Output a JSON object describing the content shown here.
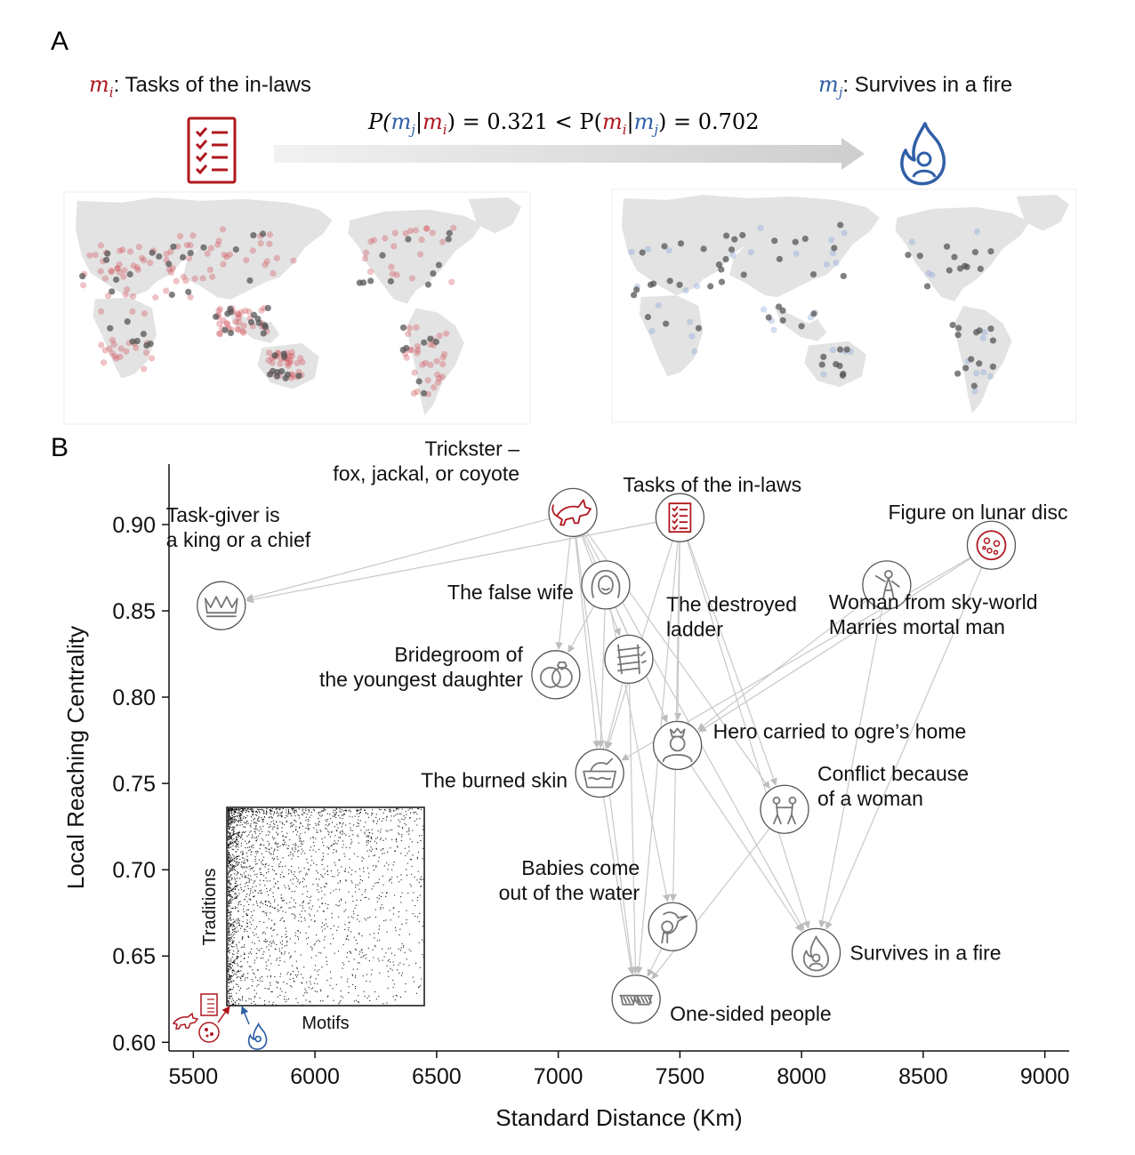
{
  "panel_a": {
    "letter": "A",
    "left_title_math": "m",
    "left_title_sub": "i",
    "left_title_text": ": Tasks of the in-laws",
    "right_title_math": "m",
    "right_title_sub": "j",
    "right_title_text": ": Survives in a fire",
    "equation": {
      "p_open": "P(",
      "mj": "m",
      "mj_sub": "j",
      "bar": "|",
      "mi": "m",
      "mi_sub": "i",
      "close_eq1": ") = 0.321 < P(",
      "mi2": "m",
      "mi2_sub": "i",
      "bar2": "|",
      "mj2": "m",
      "mj2_sub": "j",
      "close_eq2": ") = 0.702"
    },
    "left_icon": "checklist-icon",
    "right_icon": "fire-person-icon",
    "colors": {
      "red": "#b0171f",
      "blue": "#2f5fa6",
      "grey_dot": "#555555",
      "land": "#e3e3e3"
    }
  },
  "chart_data": {
    "type": "scatter",
    "panel_letter": "B",
    "xlabel": "Standard Distance (Km)",
    "ylabel": "Local Reaching Centrality",
    "xlim": [
      5400,
      9100
    ],
    "ylim": [
      0.595,
      0.935
    ],
    "xticks": [
      5500,
      6000,
      6500,
      7000,
      7500,
      8000,
      8500,
      9000
    ],
    "yticks": [
      0.6,
      0.65,
      0.7,
      0.75,
      0.8,
      0.85,
      0.9
    ],
    "grid": false,
    "points": [
      {
        "id": "trickster",
        "label": [
          "Trickster –",
          "fox, jackal, or coyote"
        ],
        "x": 7060,
        "y": 0.907,
        "icon": "fox-icon",
        "color": "#b0171f"
      },
      {
        "id": "tasks",
        "label": [
          "Tasks of the in-laws"
        ],
        "x": 7500,
        "y": 0.904,
        "icon": "checklist-icon",
        "color": "#b0171f"
      },
      {
        "id": "lunar",
        "label": [
          "Figure on lunar disc"
        ],
        "x": 8780,
        "y": 0.888,
        "icon": "moon-disc-icon",
        "color": "#b0171f"
      },
      {
        "id": "taskgiver",
        "label": [
          "Task-giver is",
          "a king or a chief"
        ],
        "x": 5615,
        "y": 0.853,
        "icon": "crown-icon",
        "color": "#777777"
      },
      {
        "id": "falsewife",
        "label": [
          "The false wife"
        ],
        "x": 7195,
        "y": 0.865,
        "icon": "woman-face-icon",
        "color": "#777777"
      },
      {
        "id": "skywoman",
        "label": [
          "Woman from sky-world",
          "Marries mortal man"
        ],
        "x": 8350,
        "y": 0.865,
        "icon": "flying-woman-icon",
        "color": "#777777"
      },
      {
        "id": "ladder",
        "label": [
          "The destroyed",
          "ladder"
        ],
        "x": 7290,
        "y": 0.822,
        "icon": "broken-ladder-icon",
        "color": "#777777"
      },
      {
        "id": "bridegroom",
        "label": [
          "Bridegroom of",
          "the youngest daughter"
        ],
        "x": 6990,
        "y": 0.813,
        "icon": "rings-icon",
        "color": "#777777"
      },
      {
        "id": "hero",
        "label": [
          "Hero carried to ogre’s home"
        ],
        "x": 7490,
        "y": 0.772,
        "icon": "king-bust-icon",
        "color": "#777777"
      },
      {
        "id": "burned",
        "label": [
          "The burned skin"
        ],
        "x": 7170,
        "y": 0.756,
        "icon": "washing-icon",
        "color": "#777777"
      },
      {
        "id": "conflict",
        "label": [
          "Conflict because",
          "of a woman"
        ],
        "x": 7930,
        "y": 0.735,
        "icon": "fighters-icon",
        "color": "#777777"
      },
      {
        "id": "babies",
        "label": [
          "Babies come",
          "out of the water"
        ],
        "x": 7470,
        "y": 0.667,
        "icon": "stork-icon",
        "color": "#777777"
      },
      {
        "id": "survives",
        "label": [
          "Survives in a fire"
        ],
        "x": 8060,
        "y": 0.652,
        "icon": "fire-person-icon",
        "color": "#777777"
      },
      {
        "id": "onesided",
        "label": [
          "One-sided people"
        ],
        "x": 7320,
        "y": 0.625,
        "icon": "sunglasses-icon",
        "color": "#777777"
      }
    ],
    "edges": [
      [
        "trickster",
        "taskgiver"
      ],
      [
        "trickster",
        "bridegroom"
      ],
      [
        "trickster",
        "burned"
      ],
      [
        "trickster",
        "hero"
      ],
      [
        "trickster",
        "onesided"
      ],
      [
        "trickster",
        "survives"
      ],
      [
        "trickster",
        "ladder"
      ],
      [
        "trickster",
        "conflict"
      ],
      [
        "tasks",
        "taskgiver"
      ],
      [
        "tasks",
        "burned"
      ],
      [
        "tasks",
        "hero"
      ],
      [
        "tasks",
        "babies"
      ],
      [
        "tasks",
        "conflict"
      ],
      [
        "tasks",
        "survives"
      ],
      [
        "tasks",
        "onesided"
      ],
      [
        "falsewife",
        "bridegroom"
      ],
      [
        "falsewife",
        "burned"
      ],
      [
        "falsewife",
        "hero"
      ],
      [
        "falsewife",
        "babies"
      ],
      [
        "ladder",
        "burned"
      ],
      [
        "ladder",
        "onesided"
      ],
      [
        "lunar",
        "burned"
      ],
      [
        "lunar",
        "hero"
      ],
      [
        "lunar",
        "survives"
      ],
      [
        "skywoman",
        "hero"
      ],
      [
        "skywoman",
        "survives"
      ],
      [
        "conflict",
        "onesided"
      ],
      [
        "hero",
        "survives"
      ],
      [
        "burned",
        "onesided"
      ],
      [
        "babies",
        "onesided"
      ]
    ],
    "inset": {
      "xlabel": "Motifs",
      "ylabel": "Traditions"
    }
  }
}
